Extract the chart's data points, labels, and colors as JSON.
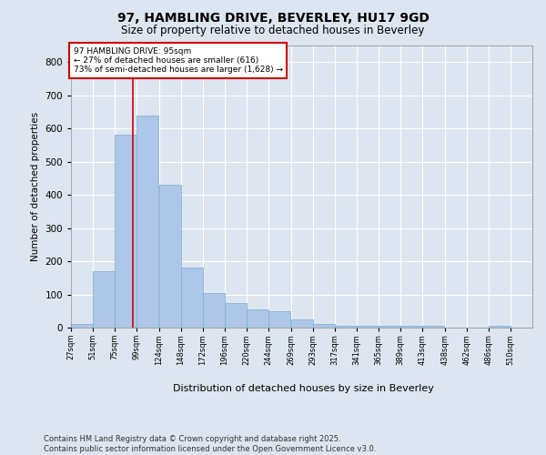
{
  "title_line1": "97, HAMBLING DRIVE, BEVERLEY, HU17 9GD",
  "title_line2": "Size of property relative to detached houses in Beverley",
  "xlabel": "Distribution of detached houses by size in Beverley",
  "ylabel": "Number of detached properties",
  "footer_line1": "Contains HM Land Registry data © Crown copyright and database right 2025.",
  "footer_line2": "Contains public sector information licensed under the Open Government Licence v3.0.",
  "annotation_line1": "97 HAMBLING DRIVE: 95sqm",
  "annotation_line2": "← 27% of detached houses are smaller (616)",
  "annotation_line3": "73% of semi-detached houses are larger (1,628) →",
  "property_size": 95,
  "bar_left_edges": [
    27,
    51,
    75,
    99,
    124,
    148,
    172,
    196,
    220,
    244,
    269,
    293,
    317,
    341,
    365,
    389,
    413,
    438,
    462,
    486
  ],
  "bar_heights": [
    10,
    170,
    580,
    640,
    430,
    180,
    105,
    75,
    55,
    50,
    25,
    10,
    5,
    5,
    5,
    5,
    5,
    0,
    0,
    5
  ],
  "bin_width": 24,
  "bar_color": "#aec6e8",
  "bar_edge_color": "#7aafd4",
  "vline_color": "#cc0000",
  "annotation_box_color": "#cc0000",
  "ylim": [
    0,
    850
  ],
  "yticks": [
    0,
    100,
    200,
    300,
    400,
    500,
    600,
    700,
    800
  ],
  "tick_labels": [
    "27sqm",
    "51sqm",
    "75sqm",
    "99sqm",
    "124sqm",
    "148sqm",
    "172sqm",
    "196sqm",
    "220sqm",
    "244sqm",
    "269sqm",
    "293sqm",
    "317sqm",
    "341sqm",
    "365sqm",
    "389sqm",
    "413sqm",
    "438sqm",
    "462sqm",
    "486sqm",
    "510sqm"
  ],
  "background_color": "#dde5f0",
  "plot_bg_color": "#dde5f0",
  "grid_color": "#ffffff"
}
